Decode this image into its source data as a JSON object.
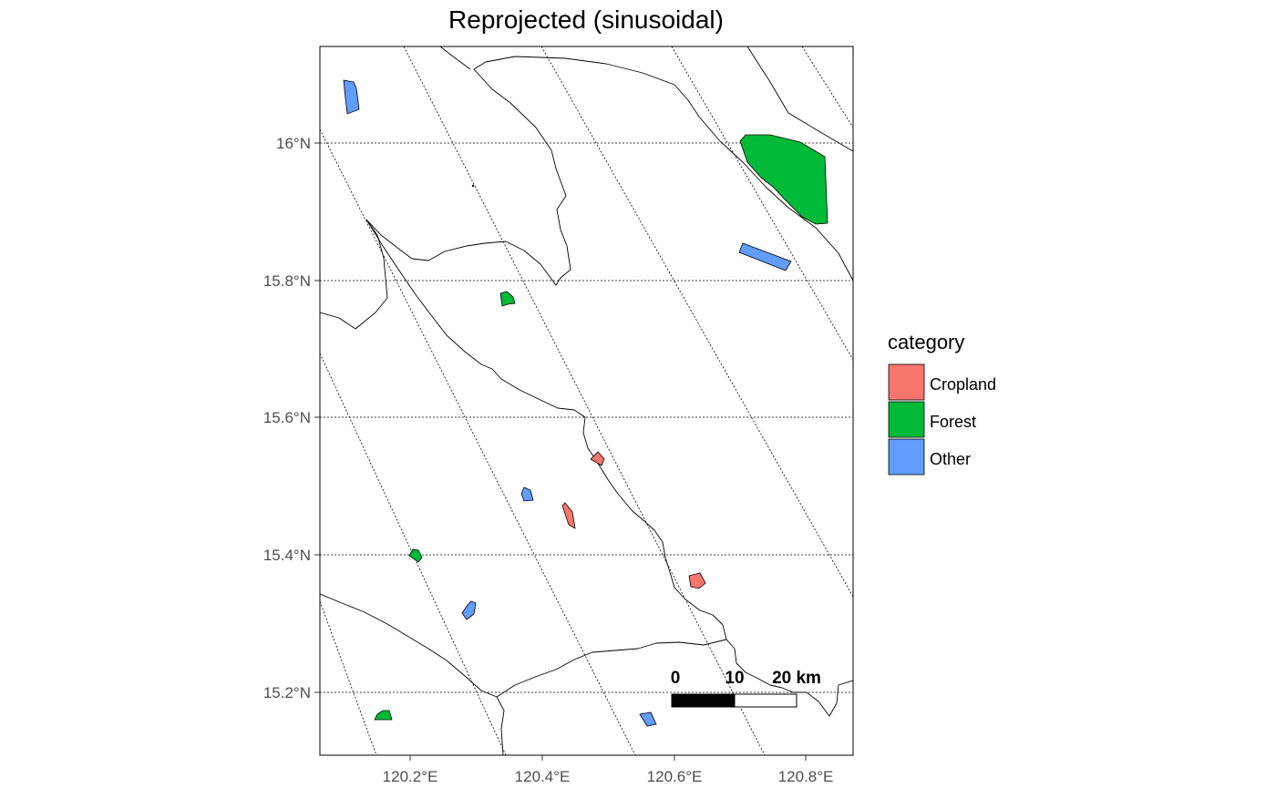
{
  "title": "Reprojected (sinusoidal)",
  "axes": {
    "x_ticks": [
      "120.2°E",
      "120.4°E",
      "120.6°E",
      "120.8°E"
    ],
    "y_ticks": [
      "16°N",
      "15.8°N",
      "15.6°N",
      "15.4°N",
      "15.2°N"
    ]
  },
  "legend": {
    "title": "category",
    "items": [
      {
        "label": "Cropland",
        "color": "#F8766D"
      },
      {
        "label": "Forest",
        "color": "#00BA38"
      },
      {
        "label": "Other",
        "color": "#619CFF"
      }
    ]
  },
  "scale_bar": {
    "labels": [
      "0",
      "10",
      "20 km"
    ]
  },
  "colors": {
    "cropland": "#F8766D",
    "forest": "#00BA38",
    "other": "#619CFF",
    "boundary": "#000000",
    "graticule": "#000000"
  }
}
